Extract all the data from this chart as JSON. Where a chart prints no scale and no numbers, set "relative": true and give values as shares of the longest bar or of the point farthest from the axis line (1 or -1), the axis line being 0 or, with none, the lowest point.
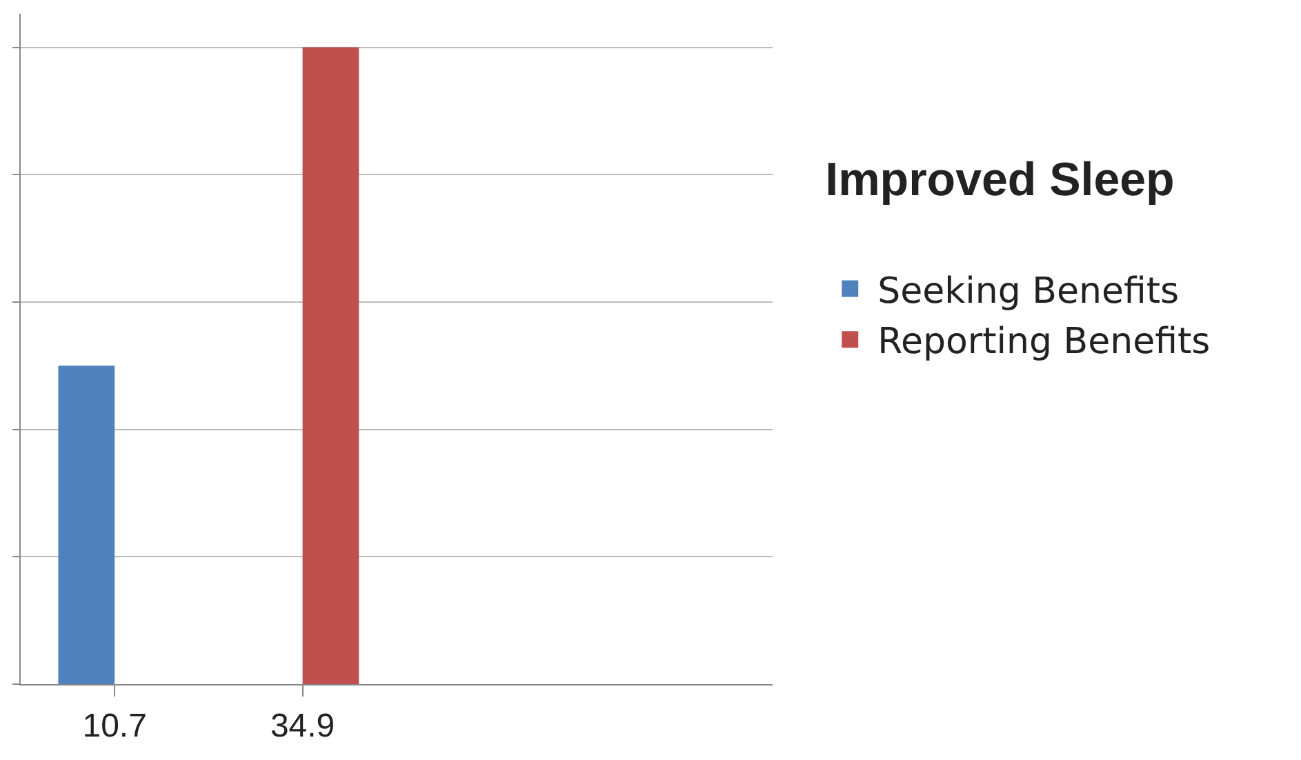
{
  "chart_data": {
    "type": "bar",
    "relative": true,
    "legend_title": "Improved Sleep",
    "categories": [
      "10.7",
      "34.9",
      null,
      null
    ],
    "series": [
      {
        "name": "Seeking Benefits",
        "color": "#4f81bd",
        "values": [
          0.5,
          null,
          null,
          null
        ]
      },
      {
        "name": "Reporting Benefits",
        "color": "#c0504d",
        "values": [
          null,
          1,
          null,
          null
        ]
      }
    ],
    "grid": "y",
    "legend": "right"
  }
}
